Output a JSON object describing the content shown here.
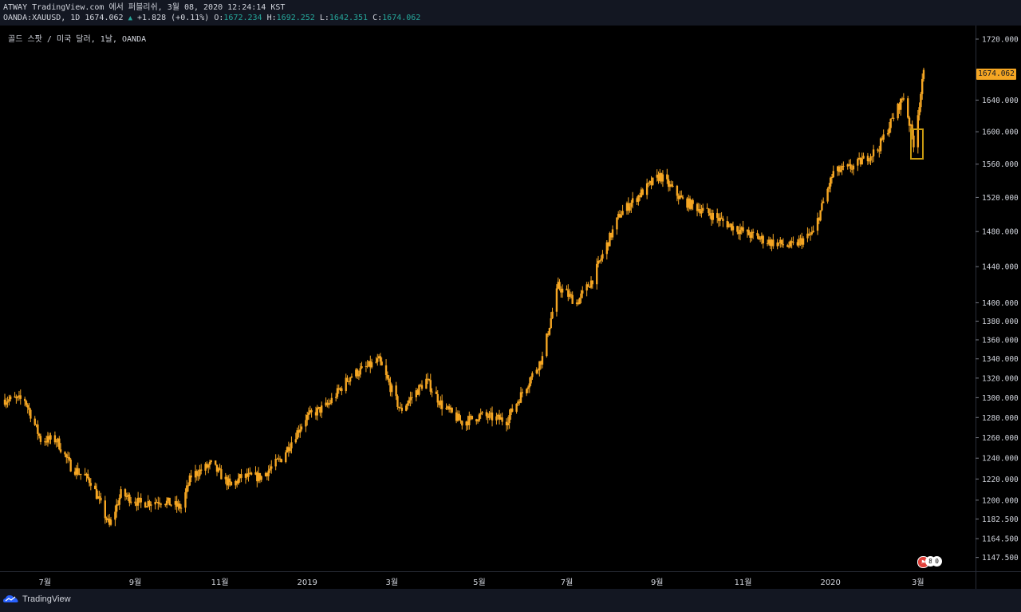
{
  "header": {
    "line1": "ATWAY TradingView.com 에서 퍼블리쉬, 3월 08, 2020 12:24:14 KST",
    "symbol": "OANDA:XAUUSD, 1D",
    "last": "1674.062",
    "change_icon": "up-triangle-icon",
    "change": "+1.828 (+0.11%)",
    "o_label": "O:",
    "o_value": "1672.234",
    "h_label": "H:",
    "h_value": "1692.252",
    "l_label": "L:",
    "l_value": "1642.351",
    "c_label": "C:",
    "c_value": "1674.062"
  },
  "chart_title": "골드 스팟 / 미국 달러, 1날, OANDA",
  "price_tag": "1674.062",
  "footer": {
    "logo_icon": "tradingview-cloud-icon",
    "logo_text": "TradingView"
  },
  "event_badge": {
    "left": "8",
    "right": "0"
  },
  "colors": {
    "candle": "#f5a623",
    "background": "#000000",
    "panel": "#131722",
    "axis_text": "#d1d4dc",
    "up": "#26a69a"
  },
  "chart_data": {
    "type": "candlestick",
    "y_scale": "log",
    "ylim": [
      1138,
      1734
    ],
    "y_ticks": [
      "1720.000",
      "1640.000",
      "1600.000",
      "1560.000",
      "1520.000",
      "1480.000",
      "1440.000",
      "1400.000",
      "1380.000",
      "1360.000",
      "1340.000",
      "1320.000",
      "1300.000",
      "1280.000",
      "1260.000",
      "1240.000",
      "1220.000",
      "1200.000",
      "1182.500",
      "1164.500",
      "1147.500"
    ],
    "x_ticks": [
      "7월",
      "9월",
      "11월",
      "2019",
      "3월",
      "5월",
      "7월",
      "9월",
      "11월",
      "2020",
      "3월"
    ],
    "close_series": [
      {
        "date": "2018-06-04",
        "close": 1298
      },
      {
        "date": "2018-06-18",
        "close": 1298
      },
      {
        "date": "2018-06-29",
        "close": 1258
      },
      {
        "date": "2018-07-10",
        "close": 1258
      },
      {
        "date": "2018-07-20",
        "close": 1232
      },
      {
        "date": "2018-08-03",
        "close": 1218
      },
      {
        "date": "2018-08-16",
        "close": 1176
      },
      {
        "date": "2018-08-24",
        "close": 1206
      },
      {
        "date": "2018-09-07",
        "close": 1197
      },
      {
        "date": "2018-09-21",
        "close": 1200
      },
      {
        "date": "2018-10-05",
        "close": 1193
      },
      {
        "date": "2018-10-12",
        "close": 1223
      },
      {
        "date": "2018-10-26",
        "close": 1234
      },
      {
        "date": "2018-11-09",
        "close": 1213
      },
      {
        "date": "2018-11-16",
        "close": 1222
      },
      {
        "date": "2018-11-30",
        "close": 1222
      },
      {
        "date": "2018-12-14",
        "close": 1240
      },
      {
        "date": "2018-12-31",
        "close": 1280
      },
      {
        "date": "2019-01-15",
        "close": 1292
      },
      {
        "date": "2019-01-31",
        "close": 1322
      },
      {
        "date": "2019-02-20",
        "close": 1338
      },
      {
        "date": "2019-03-07",
        "close": 1287
      },
      {
        "date": "2019-03-25",
        "close": 1318
      },
      {
        "date": "2019-04-05",
        "close": 1292
      },
      {
        "date": "2019-04-19",
        "close": 1275
      },
      {
        "date": "2019-05-02",
        "close": 1282
      },
      {
        "date": "2019-05-20",
        "close": 1277
      },
      {
        "date": "2019-05-31",
        "close": 1305
      },
      {
        "date": "2019-06-14",
        "close": 1341
      },
      {
        "date": "2019-06-25",
        "close": 1418
      },
      {
        "date": "2019-07-08",
        "close": 1400
      },
      {
        "date": "2019-07-19",
        "close": 1426
      },
      {
        "date": "2019-08-07",
        "close": 1500
      },
      {
        "date": "2019-08-23",
        "close": 1527
      },
      {
        "date": "2019-09-04",
        "close": 1546
      },
      {
        "date": "2019-09-20",
        "close": 1516
      },
      {
        "date": "2019-10-04",
        "close": 1505
      },
      {
        "date": "2019-10-22",
        "close": 1488
      },
      {
        "date": "2019-11-06",
        "close": 1476
      },
      {
        "date": "2019-11-20",
        "close": 1468
      },
      {
        "date": "2019-12-05",
        "close": 1463
      },
      {
        "date": "2019-12-20",
        "close": 1478
      },
      {
        "date": "2020-01-03",
        "close": 1550
      },
      {
        "date": "2020-01-17",
        "close": 1557
      },
      {
        "date": "2020-02-03",
        "close": 1578
      },
      {
        "date": "2020-02-21",
        "close": 1645
      },
      {
        "date": "2020-02-28",
        "close": 1586
      },
      {
        "date": "2020-03-06",
        "close": 1674
      }
    ]
  }
}
